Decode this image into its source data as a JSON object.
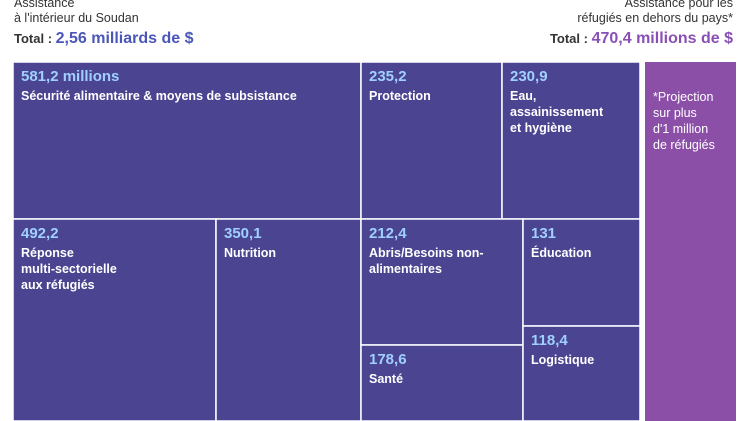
{
  "header": {
    "left_title": [
      "Assistance",
      "à l'intérieur du Soudan"
    ],
    "left_total_label": "Total :",
    "left_total_value": "2,56 milliards de $",
    "right_title": [
      "Assistance pour les",
      "réfugiés en dehors du pays*"
    ],
    "right_total_label": "Total :",
    "right_total_value": "470,4 millions de $"
  },
  "colors": {
    "tile": "#4b4491",
    "tile_border": "#ffffff",
    "value_text": "#9fd0ff",
    "label_text": "#ffffff",
    "refugee_panel": "#8c4fa8",
    "left_total": "#4a56b8",
    "right_total": "#8a4fb6"
  },
  "chart_data": {
    "type": "treemap",
    "unit": "millions de $",
    "tiles": [
      {
        "value": 581.2,
        "value_label": "581,2 millions",
        "label": [
          "Sécurité alimentaire & moyens de subsistance"
        ]
      },
      {
        "value": 235.2,
        "value_label": "235,2",
        "label": [
          "Protection"
        ]
      },
      {
        "value": 230.9,
        "value_label": "230,9",
        "label": [
          "Eau,",
          "assainissement",
          "et hygiène"
        ]
      },
      {
        "value": 492.2,
        "value_label": "492,2",
        "label": [
          "Réponse",
          "multi-sectorielle",
          "aux réfugiés"
        ]
      },
      {
        "value": 350.1,
        "value_label": "350,1",
        "label": [
          "Nutrition"
        ]
      },
      {
        "value": 212.4,
        "value_label": "212,4",
        "label": [
          "Abris/Besoins non-",
          "alimentaires"
        ]
      },
      {
        "value": 131,
        "value_label": "131",
        "label": [
          "Éducation"
        ]
      },
      {
        "value": 178.6,
        "value_label": "178,6",
        "label": [
          "Santé"
        ]
      },
      {
        "value": 118.4,
        "value_label": "118,4",
        "label": [
          "Logistique"
        ]
      }
    ],
    "refugee_panel": {
      "value": 470.4,
      "label": [
        "*Projection",
        "sur plus",
        "d'1 million",
        "de réfugiés"
      ]
    }
  }
}
